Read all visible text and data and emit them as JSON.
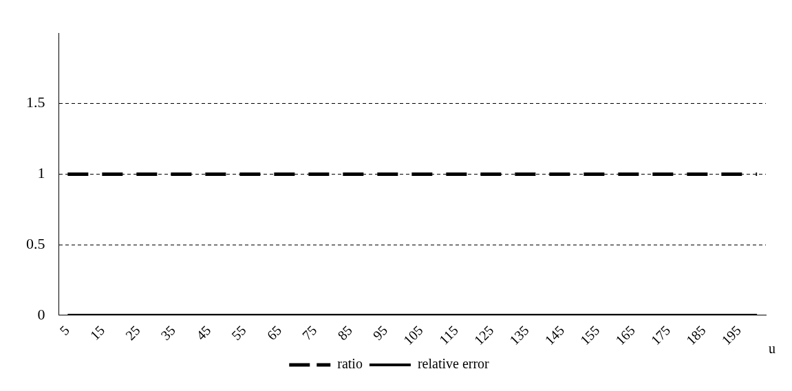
{
  "chart_data": {
    "type": "line",
    "xlabel": "u",
    "categories": [
      "5",
      null,
      "15",
      null,
      "25",
      null,
      "35",
      null,
      "45",
      null,
      "55",
      null,
      "65",
      null,
      "75",
      null,
      "85",
      null,
      "95",
      null,
      "105",
      null,
      "115",
      null,
      "125",
      null,
      "135",
      null,
      "145",
      null,
      "155",
      null,
      "165",
      null,
      "175",
      null,
      "185",
      null,
      "195",
      null
    ],
    "series": [
      {
        "name": "ratio",
        "color": "#000000",
        "line_style": "dashed",
        "values": [
          1,
          1,
          1,
          1,
          1,
          1,
          1,
          1,
          1,
          1,
          1,
          1,
          1,
          1,
          1,
          1,
          1,
          1,
          1,
          1,
          1,
          1,
          1,
          1,
          1,
          1,
          1,
          1,
          1,
          1,
          1,
          1,
          1,
          1,
          1,
          1,
          1,
          1,
          1,
          1
        ]
      },
      {
        "name": "relative error",
        "color": "#000000",
        "line_style": "solid",
        "values": [
          0,
          0,
          0,
          0,
          0,
          0,
          0,
          0,
          0,
          0,
          0,
          0,
          0,
          0,
          0,
          0,
          0,
          0,
          0,
          0,
          0,
          0,
          0,
          0,
          0,
          0,
          0,
          0,
          0,
          0,
          0,
          0,
          0,
          0,
          0,
          0,
          0,
          0,
          0,
          0
        ]
      }
    ],
    "ylim": [
      0,
      2
    ],
    "yticks": [
      0,
      0.5,
      1,
      1.5
    ],
    "grid": "y",
    "legend": "bottom",
    "marker": "none"
  }
}
